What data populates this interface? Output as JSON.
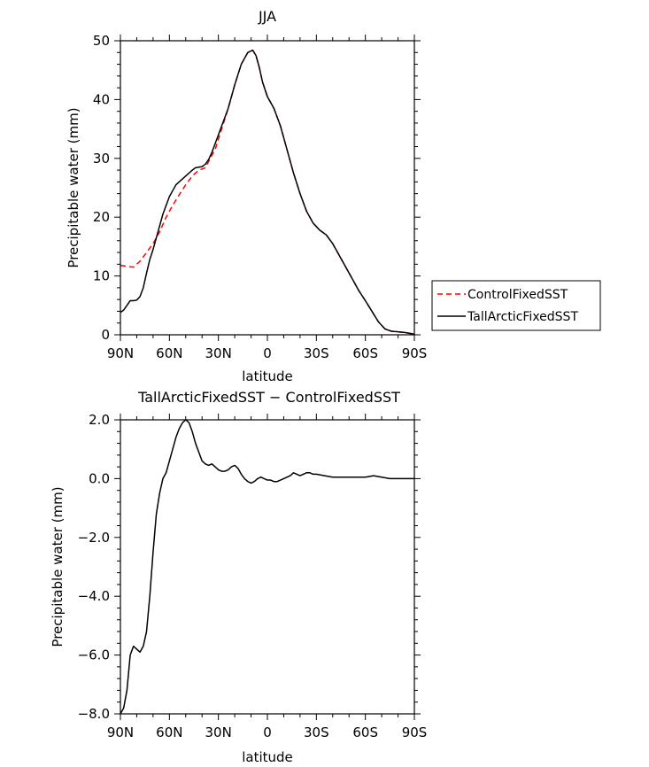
{
  "chart_data": [
    {
      "type": "line",
      "title": "JJA",
      "xlabel": "latitude",
      "ylabel": "Precipitable water (mm)",
      "xlim": [
        90,
        -90
      ],
      "ylim": [
        0,
        50
      ],
      "x_ticks": [
        90,
        60,
        30,
        0,
        -30,
        -60,
        -90
      ],
      "x_tick_labels": [
        "90N",
        "60N",
        "30N",
        "0",
        "30S",
        "60S",
        "90S"
      ],
      "y_ticks": [
        0,
        10,
        20,
        30,
        40,
        50
      ],
      "y_tick_labels": [
        "0",
        "10",
        "20",
        "30",
        "40",
        "50"
      ],
      "legend_position": "right",
      "series": [
        {
          "name": "ControlFixedSST",
          "color": "#ff0000",
          "dash": "dashed",
          "x": [
            90,
            85,
            82,
            78,
            74,
            70,
            66,
            62,
            58,
            54,
            50,
            46,
            42,
            38,
            35,
            32,
            28,
            24,
            20,
            16,
            12,
            9,
            7,
            5,
            3,
            0,
            -4,
            -8,
            -12,
            -16,
            -20,
            -24,
            -28,
            -32,
            -36,
            -40,
            -44,
            -48,
            -52,
            -56,
            -60,
            -64,
            -68,
            -72,
            -76,
            -80,
            -84,
            -88,
            -90
          ],
          "y": [
            11.8,
            11.6,
            11.5,
            12.5,
            14.0,
            15.5,
            17.5,
            20.0,
            22.0,
            23.8,
            25.5,
            27.0,
            28.0,
            28.4,
            30.0,
            31.5,
            35.0,
            38.5,
            42.5,
            46.0,
            48.0,
            48.4,
            47.5,
            45.5,
            43.0,
            40.5,
            38.5,
            35.5,
            31.5,
            27.5,
            24.0,
            21.0,
            19.0,
            17.8,
            17.0,
            15.5,
            13.5,
            11.5,
            9.5,
            7.5,
            5.8,
            4.0,
            2.2,
            1.0,
            0.6,
            0.5,
            0.4,
            0.2,
            0.1
          ]
        },
        {
          "name": "TallArcticFixedSST",
          "color": "#000000",
          "dash": "solid",
          "x": [
            90,
            88,
            86,
            84,
            82,
            80,
            78,
            76,
            74,
            72,
            70,
            68,
            66,
            64,
            62,
            60,
            58,
            56,
            54,
            52,
            50,
            48,
            46,
            44,
            42,
            40,
            38,
            36,
            34,
            32,
            28,
            24,
            20,
            16,
            12,
            9,
            7,
            5,
            3,
            0,
            -4,
            -8,
            -12,
            -16,
            -20,
            -24,
            -28,
            -32,
            -36,
            -40,
            -44,
            -48,
            -52,
            -56,
            -60,
            -64,
            -68,
            -72,
            -76,
            -80,
            -84,
            -88,
            -90
          ],
          "y": [
            3.8,
            4.2,
            5.0,
            5.8,
            5.8,
            5.9,
            6.5,
            8.0,
            10.5,
            12.8,
            14.5,
            16.5,
            18.5,
            20.5,
            22.0,
            23.5,
            24.5,
            25.5,
            26.0,
            26.5,
            27.0,
            27.5,
            28.0,
            28.4,
            28.5,
            28.6,
            29.0,
            29.8,
            31.0,
            32.5,
            35.5,
            38.5,
            42.5,
            46.0,
            48.0,
            48.4,
            47.5,
            45.5,
            43.0,
            40.5,
            38.5,
            35.5,
            31.5,
            27.5,
            24.0,
            21.0,
            19.0,
            17.8,
            17.0,
            15.5,
            13.5,
            11.5,
            9.5,
            7.5,
            5.8,
            4.0,
            2.2,
            1.0,
            0.6,
            0.5,
            0.4,
            0.2,
            0.1
          ]
        }
      ]
    },
    {
      "type": "line",
      "title": "TallArcticFixedSST − ControlFixedSST",
      "xlabel": "latitude",
      "ylabel": "Precipitable water (mm)",
      "xlim": [
        90,
        -90
      ],
      "ylim": [
        -8.0,
        2.0
      ],
      "x_ticks": [
        90,
        60,
        30,
        0,
        -30,
        -60,
        -90
      ],
      "x_tick_labels": [
        "90N",
        "60N",
        "30N",
        "0",
        "30S",
        "60S",
        "90S"
      ],
      "y_ticks": [
        -8,
        -6,
        -4,
        -2,
        0,
        2
      ],
      "y_tick_labels": [
        "−8.0",
        "−6.0",
        "−4.0",
        "−2.0",
        "0.0",
        "2.0"
      ],
      "series": [
        {
          "color": "#000000",
          "dash": "solid",
          "x": [
            90,
            88,
            86,
            84,
            82,
            80,
            78,
            76,
            74,
            72,
            70,
            68,
            66,
            64,
            62,
            60,
            58,
            56,
            54,
            52,
            50,
            48,
            46,
            44,
            42,
            40,
            38,
            36,
            34,
            32,
            30,
            28,
            26,
            24,
            22,
            20,
            18,
            16,
            14,
            12,
            10,
            8,
            6,
            4,
            2,
            0,
            -2,
            -4,
            -6,
            -8,
            -10,
            -12,
            -14,
            -16,
            -18,
            -20,
            -22,
            -24,
            -26,
            -28,
            -30,
            -35,
            -40,
            -45,
            -50,
            -55,
            -60,
            -65,
            -70,
            -75,
            -80,
            -85,
            -90
          ],
          "y": [
            -8.0,
            -7.8,
            -7.2,
            -6.0,
            -5.7,
            -5.8,
            -5.9,
            -5.7,
            -5.2,
            -4.0,
            -2.5,
            -1.2,
            -0.5,
            0.0,
            0.2,
            0.6,
            1.0,
            1.4,
            1.7,
            1.9,
            2.0,
            1.9,
            1.6,
            1.2,
            0.9,
            0.6,
            0.5,
            0.45,
            0.5,
            0.4,
            0.3,
            0.25,
            0.25,
            0.3,
            0.4,
            0.45,
            0.35,
            0.15,
            0.0,
            -0.1,
            -0.15,
            -0.1,
            0.0,
            0.05,
            0.0,
            -0.05,
            -0.05,
            -0.1,
            -0.1,
            -0.05,
            0.0,
            0.05,
            0.1,
            0.2,
            0.15,
            0.1,
            0.15,
            0.2,
            0.2,
            0.15,
            0.15,
            0.1,
            0.05,
            0.05,
            0.05,
            0.05,
            0.05,
            0.1,
            0.05,
            0.0,
            0.0,
            0.0,
            0.0
          ]
        }
      ]
    }
  ]
}
